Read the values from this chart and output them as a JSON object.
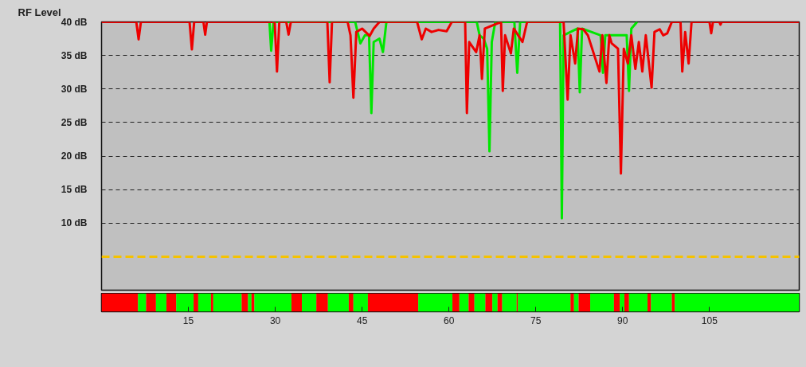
{
  "chart_data": [
    {
      "type": "line",
      "title": "RF Level",
      "xlim": [
        0,
        120.5
      ],
      "ylim": [
        0,
        40
      ],
      "yticks": [
        {
          "value": 10,
          "label": "10 dB"
        },
        {
          "value": 15,
          "label": "15 dB"
        },
        {
          "value": 20,
          "label": "20 dB"
        },
        {
          "value": 25,
          "label": "25 dB"
        },
        {
          "value": 30,
          "label": "30 dB"
        },
        {
          "value": 35,
          "label": "35 dB"
        },
        {
          "value": 40,
          "label": "40 dB"
        }
      ],
      "grid": "y",
      "tick_labels": "y",
      "line_style": "solid",
      "ref_lines": [
        {
          "axis": "y",
          "value": 5,
          "label": null,
          "color": "#f5c200",
          "line_style": "dashed"
        }
      ],
      "series": [
        {
          "color": "#00e600",
          "x": [
            29.0,
            29.3,
            29.7,
            43.8,
            44.7,
            45.5,
            46.2,
            46.6,
            47.0,
            48.0,
            48.6,
            49.2,
            64.8,
            65.3,
            66.0,
            66.6,
            67.0,
            67.4,
            68.0,
            71.3,
            71.8,
            72.3,
            79.2,
            79.5,
            79.8,
            82.2,
            82.6,
            83.0,
            86.2,
            86.6,
            87.0,
            90.7,
            91.1,
            91.5,
            92.5
          ],
          "values": [
            40,
            35.7,
            40,
            40,
            36.8,
            38.0,
            38.0,
            26.4,
            37.0,
            37.5,
            35.5,
            40,
            40,
            38.0,
            37.5,
            36.0,
            20.7,
            37.0,
            40,
            40,
            32.4,
            40,
            40,
            10.7,
            38.0,
            39.0,
            29.5,
            39.0,
            38.0,
            32.4,
            38.0,
            38.0,
            29.7,
            39.0,
            40
          ]
        },
        {
          "color": "#ee0000",
          "x": [
            0,
            6.0,
            6.4,
            6.8,
            15.2,
            15.6,
            16.0,
            17.6,
            17.9,
            18.2,
            29.9,
            30.3,
            30.7,
            31.9,
            32.3,
            32.7,
            39.0,
            39.4,
            39.8,
            42.5,
            43.0,
            43.5,
            44.0,
            45.0,
            46.3,
            47.0,
            48.0,
            54.5,
            55.3,
            56.0,
            57.0,
            58.2,
            59.6,
            60.5,
            62.8,
            63.1,
            63.5,
            64.7,
            65.3,
            65.7,
            66.2,
            69.0,
            69.3,
            69.7,
            70.7,
            71.2,
            72.7,
            73.5,
            79.8,
            80.5,
            81.0,
            81.8,
            82.3,
            83.2,
            84.0,
            86.0,
            86.5,
            87.2,
            87.7,
            88.1,
            89.2,
            89.7,
            90.2,
            90.9,
            91.5,
            92.2,
            92.8,
            93.4,
            94.0,
            95.0,
            95.5,
            96.4,
            97.0,
            97.7,
            98.5,
            100.0,
            100.3,
            100.8,
            101.4,
            101.9,
            105.0,
            105.3,
            105.6,
            106.7,
            106.9,
            107.1,
            120.5
          ],
          "values": [
            40,
            40,
            37.4,
            40,
            40,
            35.9,
            40,
            40,
            38.1,
            40,
            40,
            32.6,
            40,
            40,
            38.1,
            40,
            40,
            31.0,
            40,
            40,
            38.0,
            28.7,
            38.5,
            39.0,
            37.9,
            39.0,
            40,
            40,
            37.4,
            39.0,
            38.5,
            38.8,
            38.6,
            40,
            40,
            26.4,
            37.0,
            35.5,
            38.0,
            31.5,
            39.0,
            40,
            29.7,
            38.0,
            35.3,
            39.0,
            37.0,
            40,
            40,
            28.4,
            38.0,
            33.8,
            39.0,
            38.9,
            38.0,
            32.6,
            38.0,
            30.9,
            38.0,
            36.8,
            36.0,
            17.4,
            36.0,
            33.8,
            38.0,
            33.0,
            37.0,
            32.6,
            38.0,
            30.2,
            38.5,
            38.9,
            38.0,
            38.3,
            40,
            40,
            32.6,
            38.5,
            33.8,
            40,
            40,
            38.3,
            40,
            40,
            39.6,
            40,
            40
          ]
        }
      ]
    },
    {
      "type": "bar",
      "orientation": "horizontal",
      "stacked": true,
      "categories": [
        null
      ],
      "xlim": [
        0,
        120.5
      ],
      "xticks": [
        15,
        30,
        45,
        60,
        75,
        90,
        105
      ],
      "tick_labels": "x",
      "series": [
        {
          "color": "#ff0000",
          "values": [
            6.3
          ]
        },
        {
          "color": "#00ff00",
          "values": [
            1.4
          ]
        },
        {
          "color": "#ff0000",
          "values": [
            1.7
          ]
        },
        {
          "color": "#00ff00",
          "values": [
            1.8
          ]
        },
        {
          "color": "#ff0000",
          "values": [
            1.7
          ]
        },
        {
          "color": "#00ff00",
          "values": [
            3.0
          ]
        },
        {
          "color": "#ff0000",
          "values": [
            0.8
          ]
        },
        {
          "color": "#00ff00",
          "values": [
            2.2
          ]
        },
        {
          "color": "#ff0000",
          "values": [
            0.4
          ]
        },
        {
          "color": "#00ff00",
          "values": [
            4.9
          ]
        },
        {
          "color": "#ff0000",
          "values": [
            1.1
          ]
        },
        {
          "color": "#00ff00",
          "values": [
            0.6
          ]
        },
        {
          "color": "#ff0000",
          "values": [
            0.5
          ]
        },
        {
          "color": "#00ff00",
          "values": [
            6.4
          ]
        },
        {
          "color": "#ff0000",
          "values": [
            1.8
          ]
        },
        {
          "color": "#00ff00",
          "values": [
            2.5
          ]
        },
        {
          "color": "#ff0000",
          "values": [
            2.0
          ]
        },
        {
          "color": "#00ff00",
          "values": [
            3.6
          ]
        },
        {
          "color": "#ff0000",
          "values": [
            0.8
          ]
        },
        {
          "color": "#00ff00",
          "values": [
            2.5
          ]
        },
        {
          "color": "#ff0000",
          "values": [
            8.7
          ]
        },
        {
          "color": "#00ff00",
          "values": [
            5.9
          ]
        },
        {
          "color": "#ff0000",
          "values": [
            1.2
          ]
        },
        {
          "color": "#00ff00",
          "values": [
            1.6
          ]
        },
        {
          "color": "#ff0000",
          "values": [
            1.0
          ]
        },
        {
          "color": "#00ff00",
          "values": [
            1.9
          ]
        },
        {
          "color": "#ff0000",
          "values": [
            1.2
          ]
        },
        {
          "color": "#00ff00",
          "values": [
            0.9
          ]
        },
        {
          "color": "#ff0000",
          "values": [
            0.8
          ]
        },
        {
          "color": "#00ff00",
          "values": [
            2.5
          ]
        },
        {
          "color": "#ff0000",
          "values": [
            0.2
          ]
        },
        {
          "color": "#00ff00",
          "values": [
            9.1
          ]
        },
        {
          "color": "#ff0000",
          "values": [
            0.6
          ]
        },
        {
          "color": "#00ff00",
          "values": [
            0.8
          ]
        },
        {
          "color": "#ff0000",
          "values": [
            2.0
          ]
        },
        {
          "color": "#00ff00",
          "values": [
            4.1
          ]
        },
        {
          "color": "#ff0000",
          "values": [
            1.0
          ]
        },
        {
          "color": "#00ff00",
          "values": [
            0.8
          ]
        },
        {
          "color": "#ff0000",
          "values": [
            0.8
          ]
        },
        {
          "color": "#00ff00",
          "values": [
            3.2
          ]
        },
        {
          "color": "#ff0000",
          "values": [
            0.6
          ]
        },
        {
          "color": "#00ff00",
          "values": [
            3.6
          ]
        },
        {
          "color": "#ff0000",
          "values": [
            0.5
          ]
        },
        {
          "color": "#00ff00",
          "values": [
            21.5
          ]
        }
      ]
    }
  ]
}
